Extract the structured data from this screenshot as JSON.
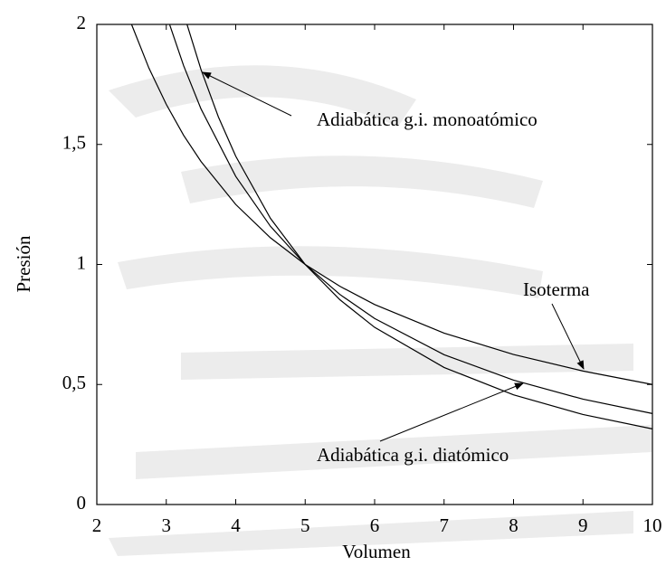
{
  "chart_data": {
    "type": "line",
    "xlabel": "Volumen",
    "ylabel": "Presión",
    "xlim": [
      2,
      10
    ],
    "ylim": [
      0,
      2
    ],
    "xticks": [
      2,
      3,
      4,
      5,
      6,
      7,
      8,
      9,
      10
    ],
    "yticks": [
      0,
      {
        "value": 0.5,
        "label": "0,5"
      },
      1,
      {
        "value": 1.5,
        "label": "1,5"
      },
      2
    ],
    "grid": false,
    "series": [
      {
        "color": "#000000",
        "x": [
          2.5,
          2.75,
          3,
          3.25,
          3.5,
          4,
          4.5,
          5,
          5.5,
          6,
          7,
          8,
          9,
          10
        ],
        "y": [
          2,
          1.818,
          1.667,
          1.538,
          1.429,
          1.25,
          1.111,
          1,
          0.909,
          0.833,
          0.714,
          0.625,
          0.556,
          0.5
        ]
      },
      {
        "color": "#000000",
        "x": [
          3.05,
          3.25,
          3.5,
          4,
          4.5,
          5,
          5.5,
          6,
          7,
          8,
          9,
          10
        ],
        "y": [
          1.998,
          1.828,
          1.648,
          1.367,
          1.159,
          1,
          0.875,
          0.775,
          0.624,
          0.518,
          0.439,
          0.379
        ]
      },
      {
        "color": "#000000",
        "x": [
          3.3,
          3.5,
          3.75,
          4,
          4.5,
          5,
          5.5,
          6,
          7,
          8,
          9,
          10
        ],
        "y": [
          1.999,
          1.812,
          1.615,
          1.451,
          1.192,
          1,
          0.853,
          0.738,
          0.571,
          0.457,
          0.375,
          0.315
        ]
      }
    ],
    "annotations": [
      "Adiabática g.i. monoatómico",
      "Isoterma",
      "Adiabática g.i. diatómico"
    ]
  }
}
